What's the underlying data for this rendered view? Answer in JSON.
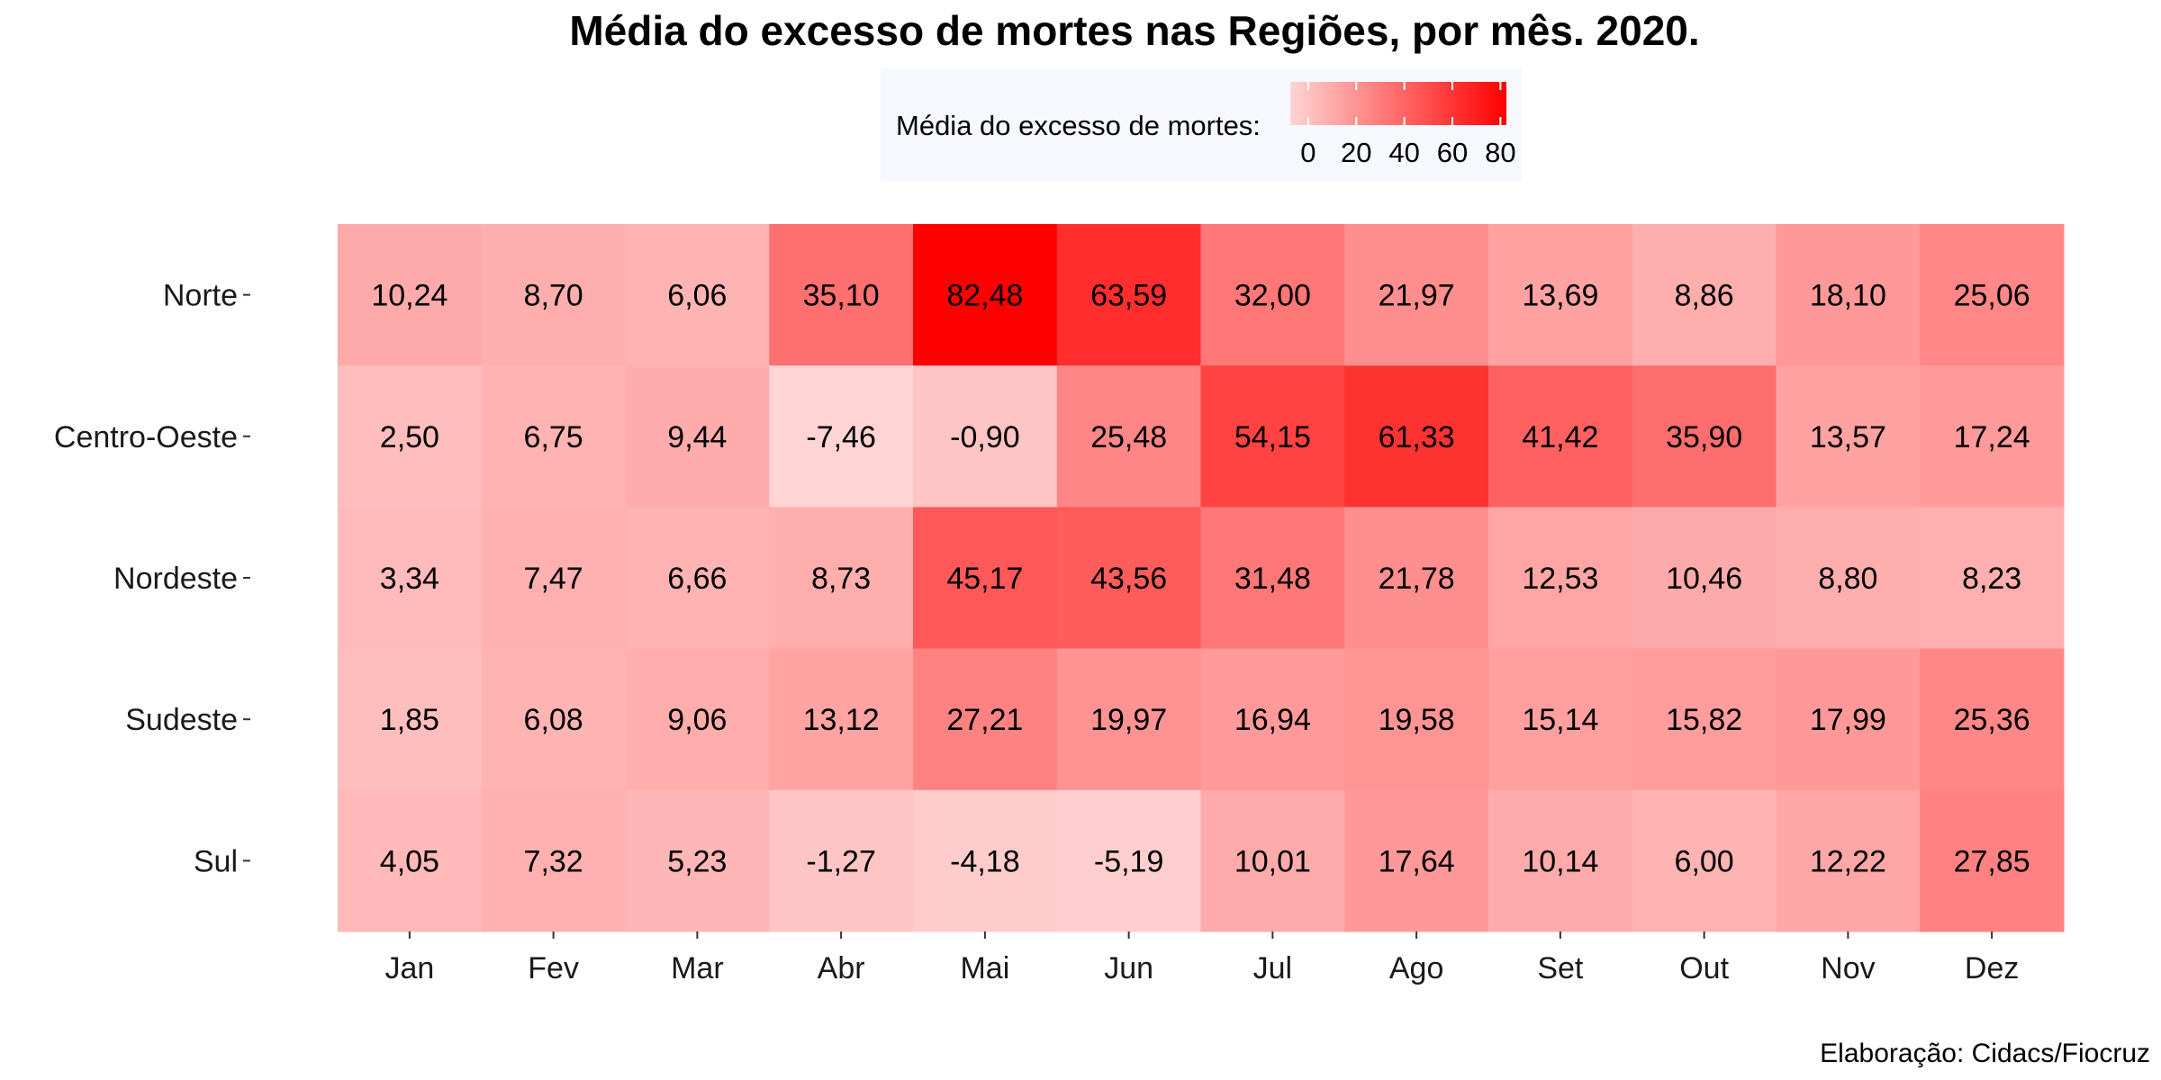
{
  "chart_data": {
    "type": "heatmap",
    "title": "Média do excesso de mortes nas Regiões, por mês. 2020.",
    "caption": "Elaboração: Cidacs/Fiocruz",
    "legend": {
      "title": "Média do excesso de mortes:",
      "placement": "top",
      "ticks": [
        0,
        20,
        40,
        60,
        80
      ],
      "range": [
        -7.46,
        82.48
      ],
      "color_low": "#ffd4d4",
      "color_high": "#ff0000"
    },
    "x_categories": [
      "Jan",
      "Fev",
      "Mar",
      "Abr",
      "Mai",
      "Jun",
      "Jul",
      "Ago",
      "Set",
      "Out",
      "Nov",
      "Dez"
    ],
    "y_categories": [
      "Norte",
      "Centro-Oeste",
      "Nordeste",
      "Sudeste",
      "Sul"
    ],
    "values": [
      [
        10.24,
        8.7,
        6.06,
        35.1,
        82.48,
        63.59,
        32.0,
        21.97,
        13.69,
        8.86,
        18.1,
        25.06
      ],
      [
        2.5,
        6.75,
        9.44,
        -7.46,
        -0.9,
        25.48,
        54.15,
        61.33,
        41.42,
        35.9,
        13.57,
        17.24
      ],
      [
        3.34,
        7.47,
        6.66,
        8.73,
        45.17,
        43.56,
        31.48,
        21.78,
        12.53,
        10.46,
        8.8,
        8.23
      ],
      [
        1.85,
        6.08,
        9.06,
        13.12,
        27.21,
        19.97,
        16.94,
        19.58,
        15.14,
        15.82,
        17.99,
        25.36
      ],
      [
        4.05,
        7.32,
        5.23,
        -1.27,
        -4.18,
        -5.19,
        10.01,
        17.64,
        10.14,
        6.0,
        12.22,
        27.85
      ]
    ],
    "labels": [
      [
        "10,24",
        "8,70",
        "6,06",
        "35,10",
        "82,48",
        "63,59",
        "32,00",
        "21,97",
        "13,69",
        "8,86",
        "18,10",
        "25,06"
      ],
      [
        "2,50",
        "6,75",
        "9,44",
        "-7,46",
        "-0,90",
        "25,48",
        "54,15",
        "61,33",
        "41,42",
        "35,90",
        "13,57",
        "17,24"
      ],
      [
        "3,34",
        "7,47",
        "6,66",
        "8,73",
        "45,17",
        "43,56",
        "31,48",
        "21,78",
        "12,53",
        "10,46",
        "8,80",
        "8,23"
      ],
      [
        "1,85",
        "6,08",
        "9,06",
        "13,12",
        "27,21",
        "19,97",
        "16,94",
        "19,58",
        "15,14",
        "15,82",
        "17,99",
        "25,36"
      ],
      [
        "4,05",
        "7,32",
        "5,23",
        "-1,27",
        "-4,18",
        "-5,19",
        "10,01",
        "17,64",
        "10,14",
        "6,00",
        "12,22",
        "27,85"
      ]
    ],
    "xlabel": "",
    "ylabel": "",
    "grid": false
  }
}
